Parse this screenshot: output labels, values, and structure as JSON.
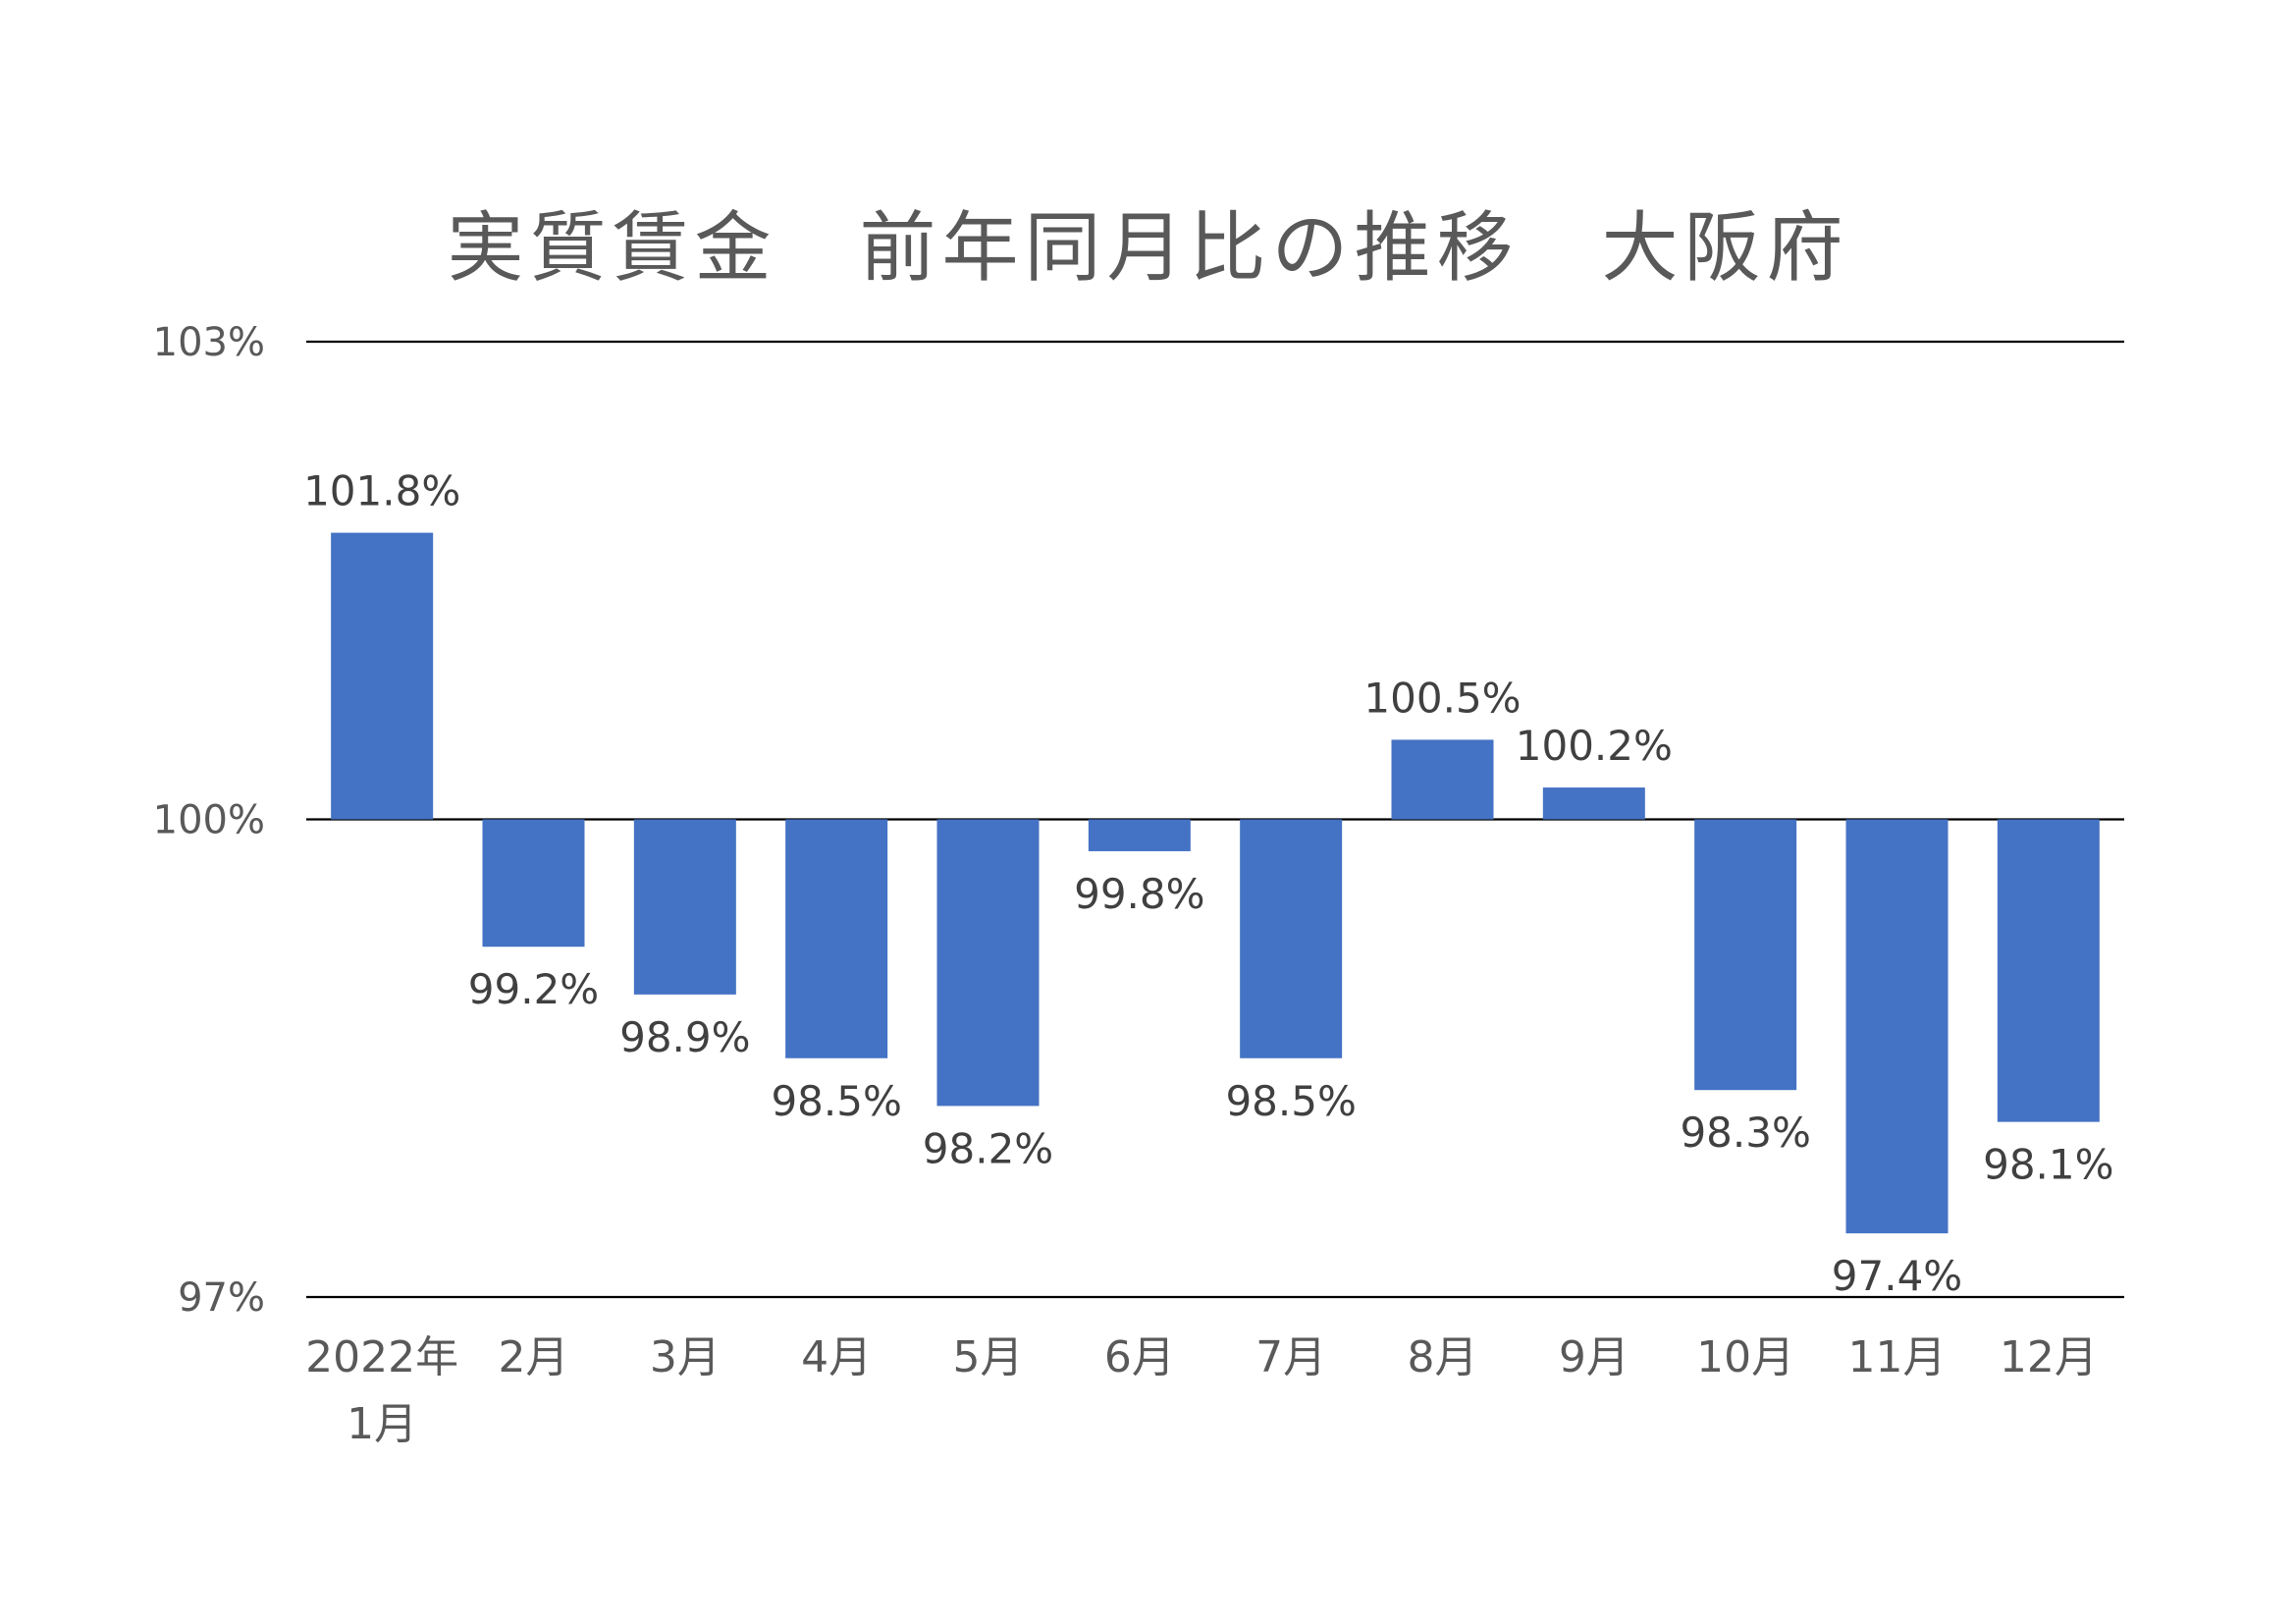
{
  "chart_data": {
    "type": "bar",
    "title": "実質賃金　前年同月比の推移　大阪府",
    "xlabel": "",
    "ylabel": "",
    "ylim": [
      97,
      103
    ],
    "baseline": 100,
    "yticks": [
      {
        "value": 103,
        "label": "103%"
      },
      {
        "value": 100,
        "label": "100%"
      },
      {
        "value": 97,
        "label": "97%"
      }
    ],
    "grid": true,
    "categories": [
      [
        "2022年",
        "1月"
      ],
      [
        "2月"
      ],
      [
        "3月"
      ],
      [
        "4月"
      ],
      [
        "5月"
      ],
      [
        "6月"
      ],
      [
        "7月"
      ],
      [
        "8月"
      ],
      [
        "9月"
      ],
      [
        "10月"
      ],
      [
        "11月"
      ],
      [
        "12月"
      ]
    ],
    "values": [
      101.8,
      99.2,
      98.9,
      98.5,
      98.2,
      99.8,
      98.5,
      100.5,
      100.2,
      98.3,
      97.4,
      98.1
    ],
    "labels": [
      "101.8%",
      "99.2%",
      "98.9%",
      "98.5%",
      "98.2%",
      "99.8%",
      "98.5%",
      "100.5%",
      "100.2%",
      "98.3%",
      "97.4%",
      "98.1%"
    ],
    "colors": {
      "bar": "#4472C4",
      "grid": "#000000",
      "text": "#595959"
    }
  }
}
